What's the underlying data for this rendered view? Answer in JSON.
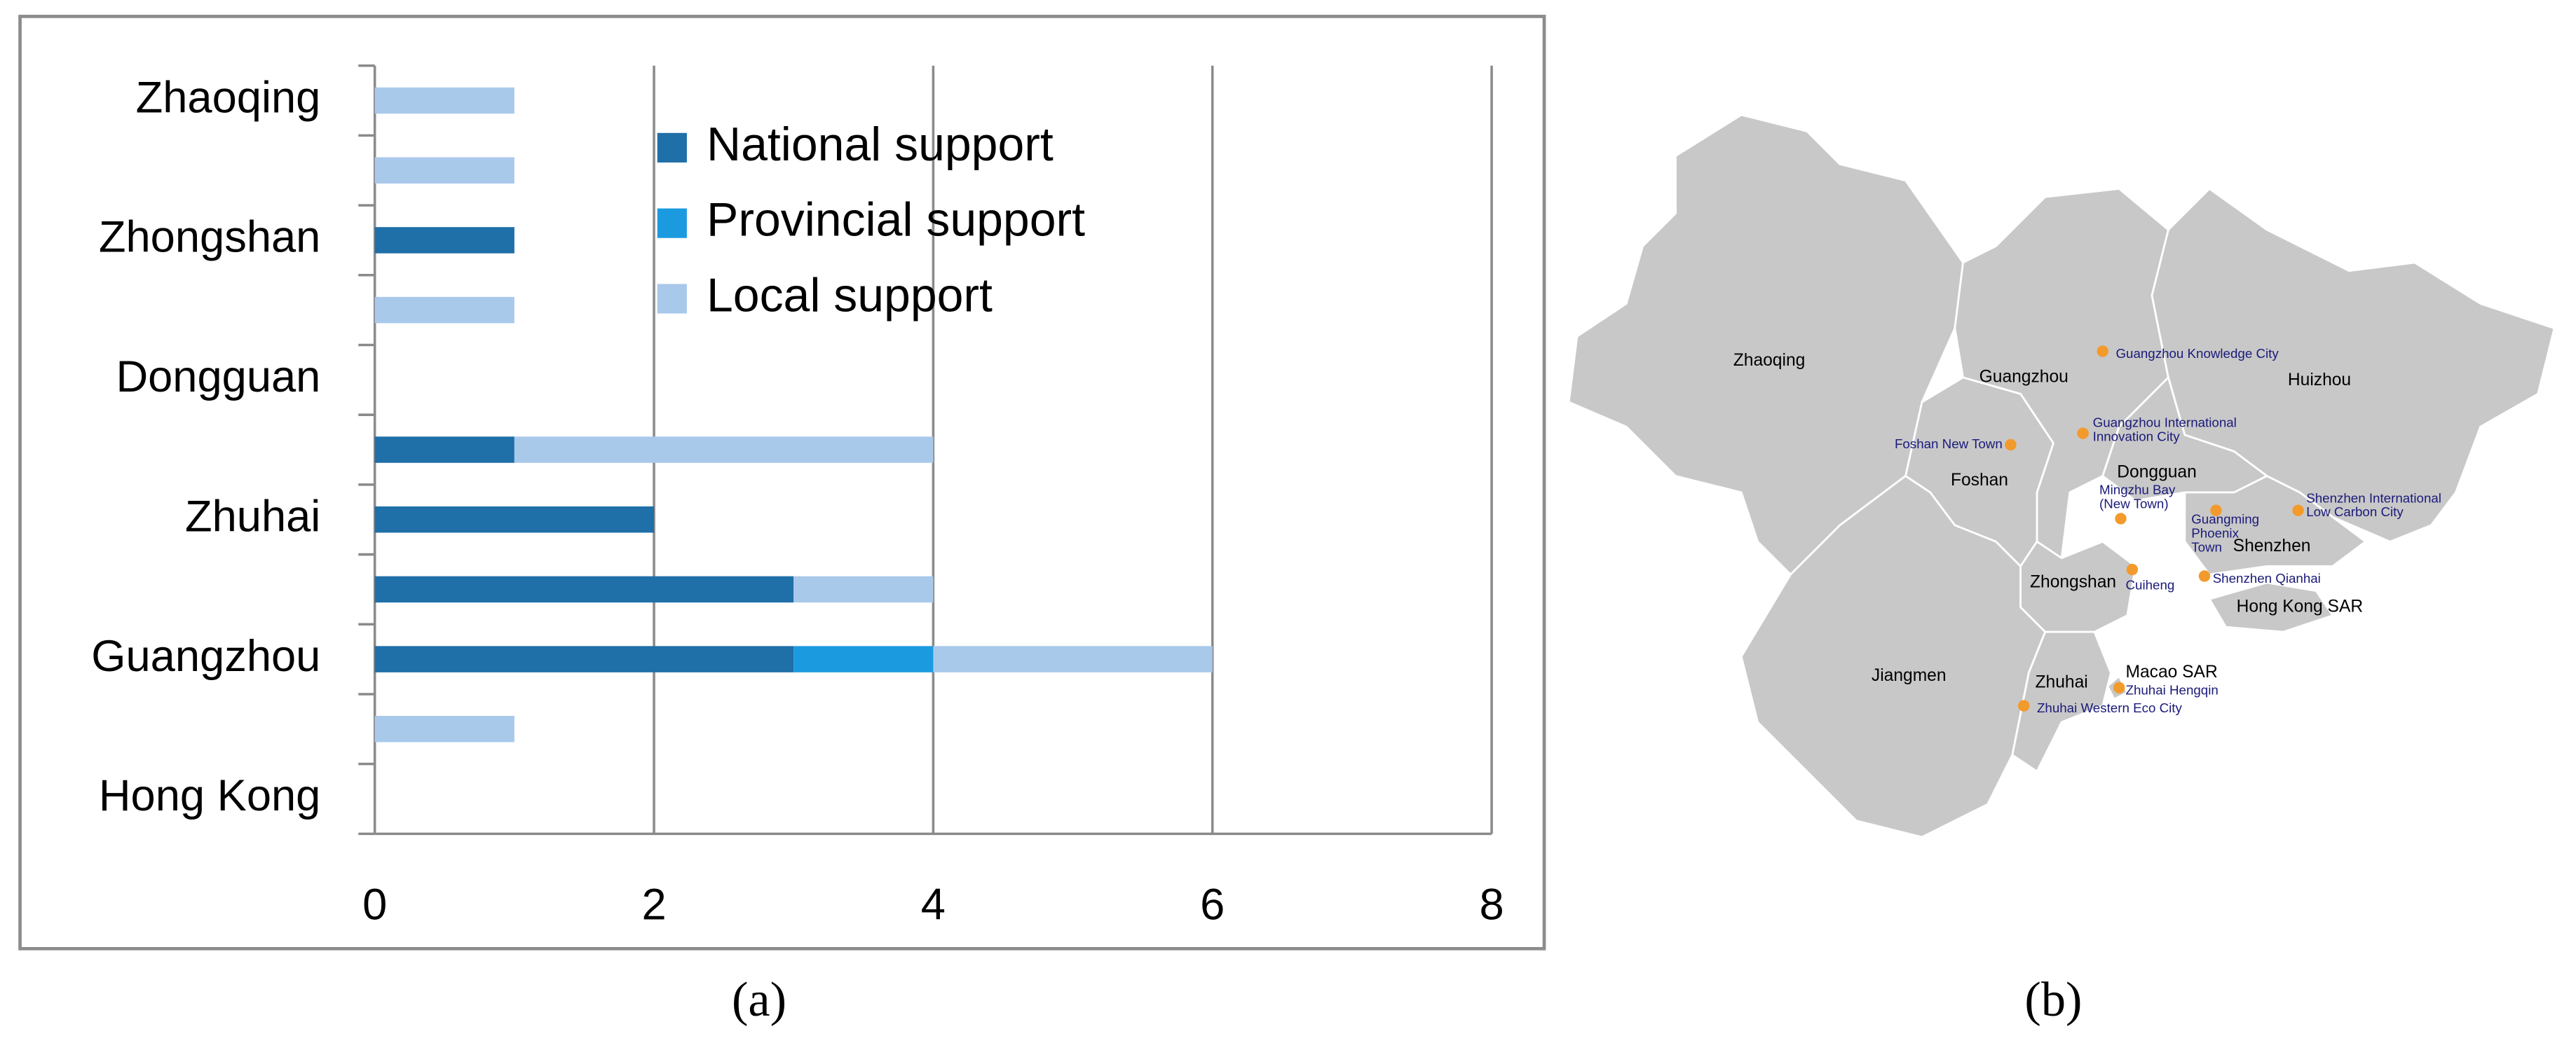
{
  "chart_data": {
    "type": "stacked-barh",
    "categories": [
      "Zhaoqing",
      null,
      "Zhongshan",
      null,
      "Dongguan",
      null,
      "Zhuhai",
      null,
      "Guangzhou",
      null,
      "Hong Kong"
    ],
    "series": [
      {
        "name": "National support",
        "color": "#1f6fa8",
        "values": [
          0,
          0,
          1,
          0,
          0,
          1,
          2,
          3,
          3,
          0,
          0
        ]
      },
      {
        "name": "Provincial support",
        "color": "#1b9ae0",
        "values": [
          0,
          0,
          0,
          0,
          0,
          0,
          0,
          0,
          1,
          0,
          0
        ]
      },
      {
        "name": "Local support",
        "color": "#a9c9eb",
        "values": [
          1,
          1,
          0,
          1,
          0,
          3,
          0,
          1,
          2,
          1,
          0
        ]
      }
    ],
    "xlim": [
      0,
      8
    ],
    "xticks": [
      0,
      2,
      4,
      6,
      8
    ],
    "grid": true,
    "legend": "top-right"
  },
  "captions": [
    "(a)",
    "(b)"
  ],
  "map": {
    "regions": [
      "Zhaoqing",
      "Guangzhou",
      "Huizhou",
      "Foshan",
      "Dongguan",
      "Shenzhen",
      "Zhongshan",
      "Hong Kong SAR",
      "Jiangmen",
      "Zhuhai",
      "Macao SAR"
    ],
    "sites": [
      [
        "Guangzhou Knowledge City"
      ],
      [
        "Guangzhou International",
        "Innovation City"
      ],
      [
        "Foshan New Town"
      ],
      [
        "Mingzhu Bay",
        "(New Town)"
      ],
      [
        "Guangming",
        "Phoenix",
        "Town"
      ],
      [
        "Shenzhen International",
        "Low Carbon City"
      ],
      [
        "Cuiheng"
      ],
      [
        "Shenzhen Qianhai"
      ],
      [
        "Zhuhai Hengqin"
      ],
      [
        "Zhuhai Western Eco City"
      ]
    ]
  }
}
